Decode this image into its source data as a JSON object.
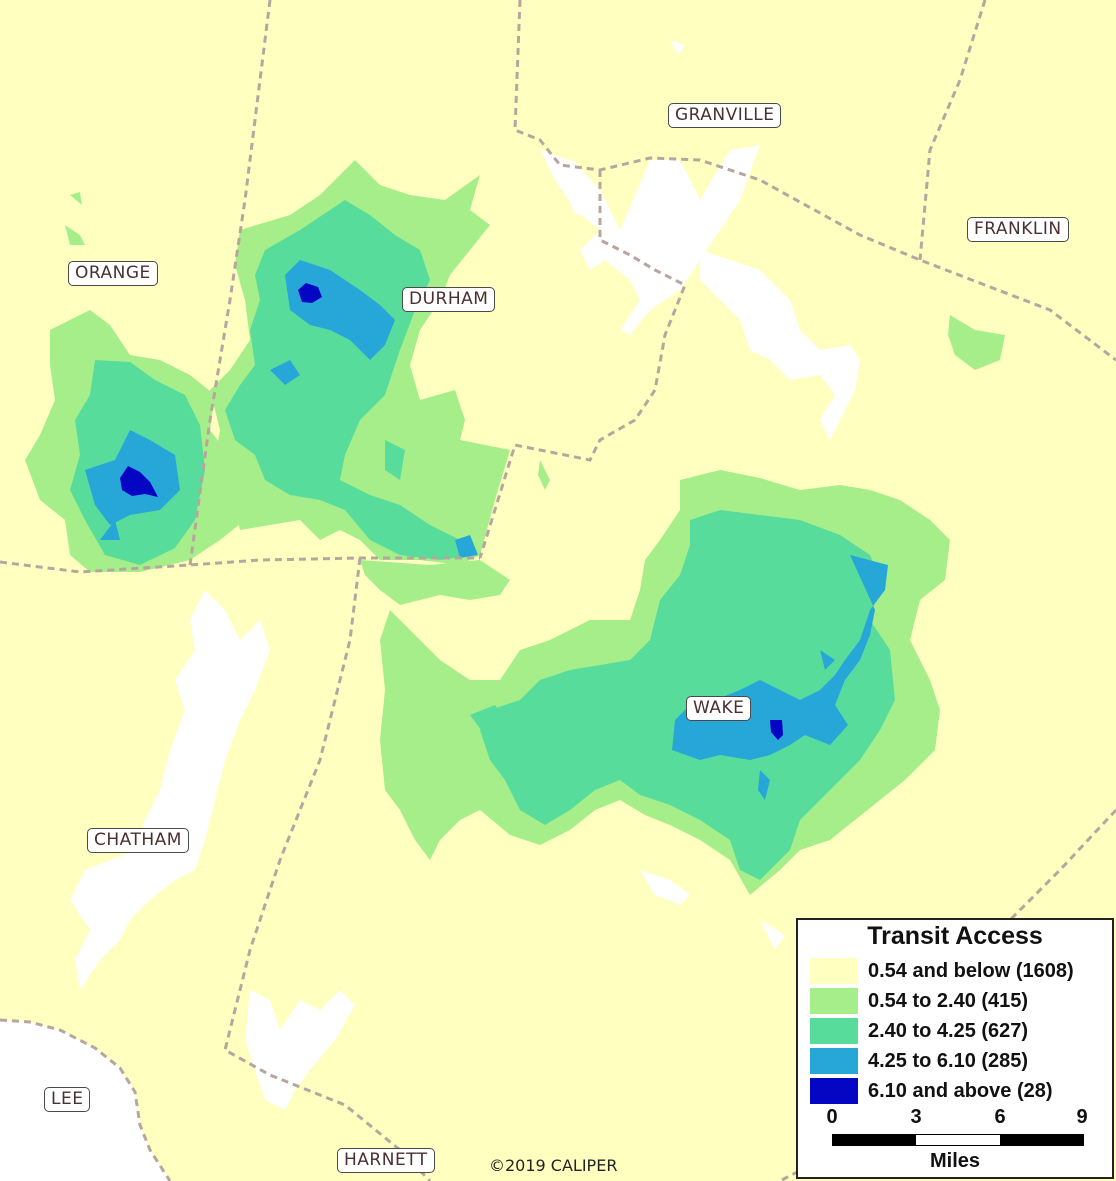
{
  "counties": {
    "orange": "ORANGE",
    "durham": "DURHAM",
    "granville": "GRANVILLE",
    "franklin": "FRANKLIN",
    "wake": "WAKE",
    "chatham": "CHATHAM",
    "lee": "LEE",
    "harnett": "HARNETT"
  },
  "copyright": "©2019 CALIPER",
  "legend": {
    "title": "Transit Access",
    "classes": [
      {
        "label": "0.54 and below (1608)",
        "color": "#ffffc0"
      },
      {
        "label": "0.54 to 2.40 (415)",
        "color": "#a6ee8a"
      },
      {
        "label": "2.40 to 4.25 (627)",
        "color": "#58dc9c"
      },
      {
        "label": "4.25 to 6.10 (285)",
        "color": "#27a6d8"
      },
      {
        "label": "6.10 and above (28)",
        "color": "#0505c4"
      }
    ],
    "scale_ticks": [
      "0",
      "3",
      "6",
      "9"
    ],
    "scale_units": "Miles"
  },
  "colors": {
    "outside": "#ffffff",
    "boundary": "#b8a5a0",
    "water": "#ffffff"
  }
}
